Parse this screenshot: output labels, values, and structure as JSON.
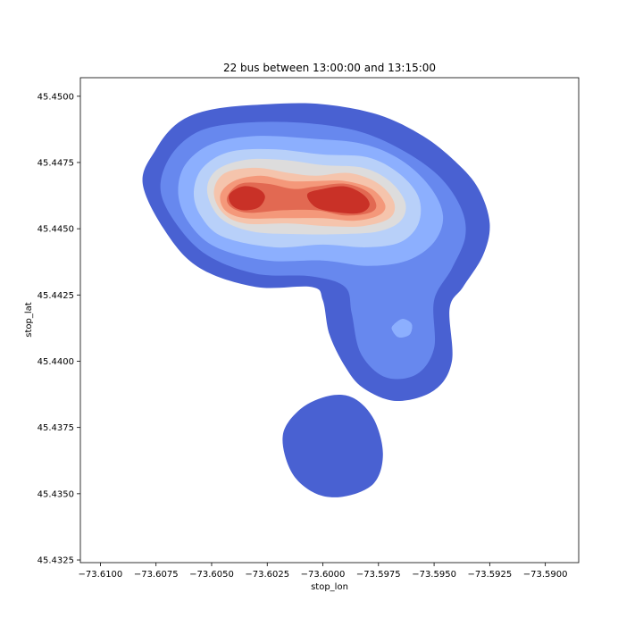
{
  "chart_data": {
    "type": "contourf",
    "title": "22 bus between 13:00:00 and 13:15:00",
    "xlabel": "stop_lon",
    "ylabel": "stop_lat",
    "xlim": [
      -73.6109,
      -73.5885
    ],
    "ylim": [
      45.4324,
      45.4507
    ],
    "x_ticks": [
      -73.61,
      -73.6075,
      -73.605,
      -73.6025,
      -73.6,
      -73.5975,
      -73.595,
      -73.5925,
      -73.59
    ],
    "x_tick_labels": [
      "−73.6100",
      "−73.6075",
      "−73.6050",
      "−73.6025",
      "−73.6000",
      "−73.5975",
      "−73.5950",
      "−73.5925",
      "−73.5900"
    ],
    "y_ticks": [
      45.4325,
      45.435,
      45.4375,
      45.44,
      45.4425,
      45.445,
      45.4475,
      45.45
    ],
    "y_tick_labels": [
      "45.4325",
      "45.4350",
      "45.4375",
      "45.4400",
      "45.4425",
      "45.4450",
      "45.4475",
      "45.4500"
    ],
    "colormap": "coolwarm",
    "grid": false,
    "density_peaks": [
      {
        "lon": -73.6037,
        "lat": 45.4462
      },
      {
        "lon": -73.5988,
        "lat": 45.4461
      }
    ],
    "levels": [
      {
        "level": 1,
        "color": "#4961d2",
        "outer": [
          [
            -73.6081,
            45.4467
          ],
          [
            -73.6075,
            45.448
          ],
          [
            -73.6065,
            45.449
          ],
          [
            -73.605,
            45.4495
          ],
          [
            -73.6025,
            45.4497
          ],
          [
            -73.6,
            45.4497
          ],
          [
            -73.5975,
            45.4493
          ],
          [
            -73.5955,
            45.4485
          ],
          [
            -73.594,
            45.4475
          ],
          [
            -73.593,
            45.4465
          ],
          [
            -73.5925,
            45.4452
          ],
          [
            -73.5928,
            45.444
          ],
          [
            -73.5937,
            45.4428
          ],
          [
            -73.5943,
            45.442
          ],
          [
            -73.5942,
            45.44
          ],
          [
            -73.595,
            45.4389
          ],
          [
            -73.5967,
            45.4385
          ],
          [
            -73.5982,
            45.439
          ],
          [
            -73.599,
            45.4398
          ],
          [
            -73.5997,
            45.441
          ],
          [
            -73.6,
            45.4423
          ],
          [
            -73.6005,
            45.4428
          ],
          [
            -73.603,
            45.4428
          ],
          [
            -73.6055,
            45.4435
          ],
          [
            -73.607,
            45.4448
          ]
        ]
      },
      {
        "level": 1,
        "color": "#4961d2",
        "outer": [
          [
            -73.6018,
            45.4372
          ],
          [
            -73.601,
            45.4382
          ],
          [
            -73.5997,
            45.4387
          ],
          [
            -73.5986,
            45.4386
          ],
          [
            -73.5977,
            45.4378
          ],
          [
            -73.5973,
            45.4365
          ],
          [
            -73.5977,
            45.4354
          ],
          [
            -73.599,
            45.4349
          ],
          [
            -73.6003,
            45.435
          ],
          [
            -73.6014,
            45.4358
          ]
        ]
      },
      {
        "level": 2,
        "color": "#6788ee",
        "outer": [
          [
            -73.6073,
            45.4465
          ],
          [
            -73.6068,
            45.4478
          ],
          [
            -73.6055,
            45.4487
          ],
          [
            -73.6035,
            45.449
          ],
          [
            -73.601,
            45.449
          ],
          [
            -73.5985,
            45.4487
          ],
          [
            -73.5965,
            45.448
          ],
          [
            -73.5948,
            45.447
          ],
          [
            -73.5938,
            45.4458
          ],
          [
            -73.5936,
            45.4447
          ],
          [
            -73.5942,
            45.4435
          ],
          [
            -73.595,
            45.4423
          ],
          [
            -73.595,
            45.4405
          ],
          [
            -73.5958,
            45.4395
          ],
          [
            -73.5972,
            45.4394
          ],
          [
            -73.5983,
            45.4403
          ],
          [
            -73.5987,
            45.4418
          ],
          [
            -73.599,
            45.4428
          ],
          [
            -73.6005,
            45.4432
          ],
          [
            -73.603,
            45.4433
          ],
          [
            -73.6052,
            45.444
          ],
          [
            -73.6066,
            45.4452
          ]
        ],
        "hole": [
          [
            -73.5968,
            45.4414
          ],
          [
            -73.5964,
            45.4416
          ],
          [
            -73.596,
            45.4414
          ],
          [
            -73.5961,
            45.441
          ],
          [
            -73.5966,
            45.4409
          ],
          [
            -73.5969,
            45.4412
          ]
        ]
      },
      {
        "level": 3,
        "color": "#8caffe",
        "outer": [
          [
            -73.6065,
            45.4463
          ],
          [
            -73.6062,
            45.4474
          ],
          [
            -73.605,
            45.4482
          ],
          [
            -73.603,
            45.4485
          ],
          [
            -73.6005,
            45.4484
          ],
          [
            -73.5982,
            45.4482
          ],
          [
            -73.5965,
            45.4476
          ],
          [
            -73.5952,
            45.4466
          ],
          [
            -73.5946,
            45.4455
          ],
          [
            -73.595,
            45.4445
          ],
          [
            -73.5962,
            45.4438
          ],
          [
            -73.598,
            45.4436
          ],
          [
            -73.6,
            45.4438
          ],
          [
            -73.6025,
            45.4438
          ],
          [
            -73.6048,
            45.4443
          ],
          [
            -73.606,
            45.4452
          ]
        ]
      },
      {
        "level": 3,
        "color": "#8caffe",
        "outer": [
          [
            -73.5968,
            45.4414
          ],
          [
            -73.5964,
            45.4416
          ],
          [
            -73.596,
            45.4414
          ],
          [
            -73.5961,
            45.441
          ],
          [
            -73.5966,
            45.4409
          ],
          [
            -73.5969,
            45.4412
          ]
        ]
      },
      {
        "level": 4,
        "color": "#b8d0f9",
        "outer": [
          [
            -73.6058,
            45.4464
          ],
          [
            -73.6054,
            45.4473
          ],
          [
            -73.6042,
            45.4479
          ],
          [
            -73.6022,
            45.448
          ],
          [
            -73.6,
            45.4478
          ],
          [
            -73.598,
            45.4477
          ],
          [
            -73.5966,
            45.4471
          ],
          [
            -73.5957,
            45.4462
          ],
          [
            -73.5957,
            45.4452
          ],
          [
            -73.5965,
            45.4445
          ],
          [
            -73.598,
            45.4443
          ],
          [
            -73.6,
            45.4444
          ],
          [
            -73.6022,
            45.4443
          ],
          [
            -73.6045,
            45.4447
          ],
          [
            -73.6055,
            45.4455
          ]
        ]
      },
      {
        "level": 5,
        "color": "#dddcdc",
        "outer": [
          [
            -73.6052,
            45.4464
          ],
          [
            -73.6048,
            45.4472
          ],
          [
            -73.6035,
            45.4476
          ],
          [
            -73.6018,
            45.4476
          ],
          [
            -73.6,
            45.4474
          ],
          [
            -73.5982,
            45.4473
          ],
          [
            -73.597,
            45.4468
          ],
          [
            -73.5963,
            45.446
          ],
          [
            -73.5965,
            45.4453
          ],
          [
            -73.5975,
            45.4449
          ],
          [
            -73.5992,
            45.4448
          ],
          [
            -73.6012,
            45.4448
          ],
          [
            -73.6032,
            45.4449
          ],
          [
            -73.6046,
            45.4454
          ]
        ]
      },
      {
        "level": 6,
        "color": "#f5c4ac",
        "outer": [
          [
            -73.6049,
            45.4464
          ],
          [
            -73.6044,
            45.4471
          ],
          [
            -73.603,
            45.4473
          ],
          [
            -73.6015,
            45.4471
          ],
          [
            -73.6003,
            45.447
          ],
          [
            -73.5988,
            45.4471
          ],
          [
            -73.5975,
            45.4467
          ],
          [
            -73.5968,
            45.446
          ],
          [
            -73.597,
            45.4454
          ],
          [
            -73.5982,
            45.4451
          ],
          [
            -73.5998,
            45.4451
          ],
          [
            -73.6015,
            45.4452
          ],
          [
            -73.6035,
            45.4452
          ],
          [
            -73.6045,
            45.4456
          ]
        ]
      },
      {
        "level": 7,
        "color": "#f4987a",
        "outer": [
          [
            -73.6046,
            45.4463
          ],
          [
            -73.604,
            45.4468
          ],
          [
            -73.6028,
            45.447
          ],
          [
            -73.6015,
            45.4468
          ],
          [
            -73.6003,
            45.4468
          ],
          [
            -73.599,
            45.4468
          ],
          [
            -73.5978,
            45.4465
          ],
          [
            -73.5972,
            45.4459
          ],
          [
            -73.5975,
            45.4455
          ],
          [
            -73.5986,
            45.4453
          ],
          [
            -73.6,
            45.4454
          ],
          [
            -73.6018,
            45.4454
          ],
          [
            -73.6035,
            45.4454
          ],
          [
            -73.6044,
            45.4457
          ]
        ]
      },
      {
        "level": 8,
        "color": "#e26952",
        "outer": [
          [
            -73.6043,
            45.4462
          ],
          [
            -73.6037,
            45.4467
          ],
          [
            -73.6025,
            45.4467
          ],
          [
            -73.6013,
            45.4465
          ],
          [
            -73.6003,
            45.4466
          ],
          [
            -73.599,
            45.4467
          ],
          [
            -73.598,
            45.4464
          ],
          [
            -73.5976,
            45.4459
          ],
          [
            -73.5979,
            45.4456
          ],
          [
            -73.599,
            45.4455
          ],
          [
            -73.6003,
            45.4457
          ],
          [
            -73.6018,
            45.4457
          ],
          [
            -73.6033,
            45.4456
          ],
          [
            -73.6041,
            45.4458
          ]
        ]
      },
      {
        "level": 9,
        "color": "#c93127",
        "outer": [
          [
            -73.6042,
            45.4463
          ],
          [
            -73.6036,
            45.4466
          ],
          [
            -73.6029,
            45.4465
          ],
          [
            -73.6026,
            45.4462
          ],
          [
            -73.6029,
            45.4458
          ],
          [
            -73.6036,
            45.4457
          ],
          [
            -73.6041,
            45.4459
          ]
        ]
      },
      {
        "level": 9,
        "color": "#c93127",
        "outer": [
          [
            -73.6007,
            45.4463
          ],
          [
            -73.6,
            45.4465
          ],
          [
            -73.599,
            45.4466
          ],
          [
            -73.5982,
            45.4463
          ],
          [
            -73.5979,
            45.4459
          ],
          [
            -73.5983,
            45.4456
          ],
          [
            -73.5992,
            45.4456
          ],
          [
            -73.6003,
            45.4458
          ]
        ]
      }
    ]
  }
}
